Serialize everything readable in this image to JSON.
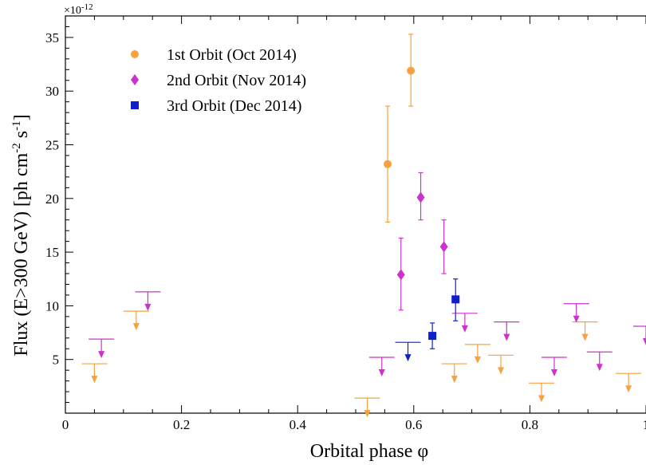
{
  "chart_data": {
    "type": "scatter",
    "xlabel": "Orbital phase φ",
    "ylabel_parts": {
      "main": "Flux (E>300 GeV) [ph cm",
      "exp1": "-2",
      "mid": " s",
      "exp2": "-1",
      "end": "]"
    },
    "y_scale_label": {
      "base": "×10",
      "exp": "-12"
    },
    "xlim": [
      0,
      1
    ],
    "ylim": [
      0,
      37
    ],
    "x_ticks": [
      0,
      0.2,
      0.4,
      0.6,
      0.8,
      1
    ],
    "x_tick_labels": [
      "0",
      "0.2",
      "0.4",
      "0.6",
      "0.8",
      "1"
    ],
    "y_ticks": [
      5,
      10,
      15,
      20,
      25,
      30,
      35
    ],
    "y_tick_labels": [
      "5",
      "10",
      "15",
      "20",
      "25",
      "30",
      "35"
    ],
    "legend_position": "top-left",
    "series": [
      {
        "name": "1st Orbit (Oct 2014)",
        "color": "#f7a13f",
        "marker": "circle",
        "points": [
          {
            "x": 0.555,
            "y": 23.2,
            "ylo": 17.8,
            "yhi": 28.6
          },
          {
            "x": 0.595,
            "y": 31.9,
            "ylo": 28.6,
            "yhi": 35.3
          }
        ],
        "upper_limits": [
          {
            "x": 0.05,
            "y": 4.6
          },
          {
            "x": 0.122,
            "y": 9.5
          },
          {
            "x": 0.52,
            "y": 1.4
          },
          {
            "x": 0.67,
            "y": 4.6
          },
          {
            "x": 0.71,
            "y": 6.4
          },
          {
            "x": 0.75,
            "y": 5.4
          },
          {
            "x": 0.82,
            "y": 2.8
          },
          {
            "x": 0.895,
            "y": 8.5
          },
          {
            "x": 0.97,
            "y": 3.7
          }
        ]
      },
      {
        "name": "2nd Orbit (Nov 2014)",
        "color": "#cc33cc",
        "marker": "diamond",
        "points": [
          {
            "x": 0.578,
            "y": 12.9,
            "ylo": 9.6,
            "yhi": 16.3
          },
          {
            "x": 0.612,
            "y": 20.1,
            "ylo": 18.0,
            "yhi": 22.4
          },
          {
            "x": 0.652,
            "y": 15.5,
            "ylo": 13.0,
            "yhi": 18.0
          }
        ],
        "upper_limits": [
          {
            "x": 0.062,
            "y": 6.9
          },
          {
            "x": 0.142,
            "y": 11.3
          },
          {
            "x": 0.545,
            "y": 5.2
          },
          {
            "x": 0.688,
            "y": 9.3
          },
          {
            "x": 0.76,
            "y": 8.5
          },
          {
            "x": 0.842,
            "y": 5.2
          },
          {
            "x": 0.88,
            "y": 10.2
          },
          {
            "x": 0.92,
            "y": 5.7
          },
          {
            "x": 1.0,
            "y": 8.1
          }
        ]
      },
      {
        "name": "3rd Orbit (Dec 2014)",
        "color": "#0f1fcc",
        "marker": "square",
        "points": [
          {
            "x": 0.632,
            "y": 7.2,
            "ylo": 6.0,
            "yhi": 8.4
          },
          {
            "x": 0.672,
            "y": 10.6,
            "ylo": 8.6,
            "yhi": 12.5
          }
        ],
        "upper_limits": [
          {
            "x": 0.59,
            "y": 6.6
          }
        ]
      }
    ]
  }
}
